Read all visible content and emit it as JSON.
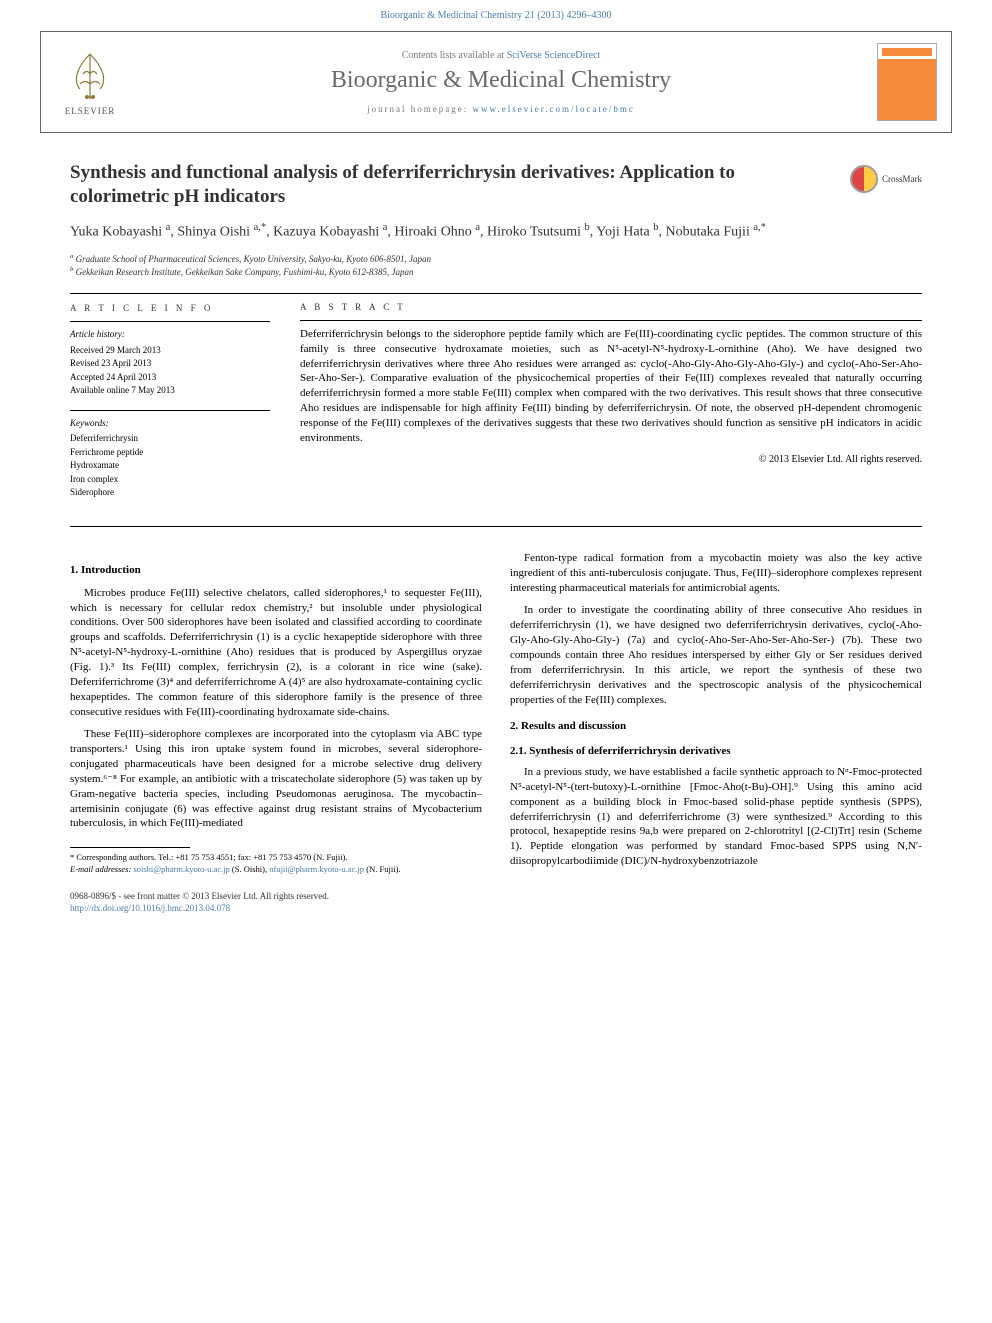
{
  "running_header": "Bioorganic & Medicinal Chemistry 21 (2013) 4296–4300",
  "header": {
    "contents_prefix": "Contents lists available at ",
    "contents_link": "SciVerse ScienceDirect",
    "journal": "Bioorganic & Medicinal Chemistry",
    "homepage_prefix": "journal homepage: ",
    "homepage_url": "www.elsevier.com/locate/bmc",
    "publisher": "ELSEVIER"
  },
  "crossmark": "CrossMark",
  "title": "Synthesis and functional analysis of deferriferrichrysin derivatives: Application to colorimetric pH indicators",
  "authors_html": "Yuka Kobayashi <sup>a</sup>, Shinya Oishi <sup>a,*</sup>, Kazuya Kobayashi <sup>a</sup>, Hiroaki Ohno <sup>a</sup>, Hiroko Tsutsumi <sup>b</sup>, Yoji Hata <sup>b</sup>, Nobutaka Fujii <sup>a,*</sup>",
  "affiliations": {
    "a": "Graduate School of Pharmaceutical Sciences, Kyoto University, Sakyo-ku, Kyoto 606-8501, Japan",
    "b": "Gekkeikan Research Institute, Gekkeikan Sake Company, Fushimi-ku, Kyoto 612-8385, Japan"
  },
  "info": {
    "heading": "A R T I C L E   I N F O",
    "history_label": "Article history:",
    "history": [
      "Received 29 March 2013",
      "Revised 23 April 2013",
      "Accepted 24 April 2013",
      "Available online 7 May 2013"
    ],
    "keywords_label": "Keywords:",
    "keywords": [
      "Deferriferrichrysin",
      "Ferrichrome peptide",
      "Hydroxamate",
      "Iron complex",
      "Siderophore"
    ]
  },
  "abstract": {
    "heading": "A B S T R A C T",
    "text": "Deferriferrichrysin belongs to the siderophore peptide family which are Fe(III)-coordinating cyclic peptides. The common structure of this family is three consecutive hydroxamate moieties, such as N⁵-acetyl-N⁵-hydroxy-L-ornithine (Aho). We have designed two deferriferrichrysin derivatives where three Aho residues were arranged as: cyclo(-Aho-Gly-Aho-Gly-Aho-Gly-) and cyclo(-Aho-Ser-Aho-Ser-Aho-Ser-). Comparative evaluation of the physicochemical properties of their Fe(III) complexes revealed that naturally occurring deferriferrichrysin formed a more stable Fe(III) complex when compared with the two derivatives. This result shows that three consecutive Aho residues are indispensable for high affinity Fe(III) binding by deferriferrichrysin. Of note, the observed pH-dependent chromogenic response of the Fe(III) complexes of the derivatives suggests that these two derivatives should function as sensitive pH indicators in acidic environments.",
    "copyright": "© 2013 Elsevier Ltd. All rights reserved."
  },
  "sections": {
    "s1_heading": "1. Introduction",
    "s1_p1": "Microbes produce Fe(III) selective chelators, called siderophores,¹ to sequester Fe(III), which is necessary for cellular redox chemistry,² but insoluble under physiological conditions. Over 500 siderophores have been isolated and classified according to coordinate groups and scaffolds. Deferriferrichrysin (1) is a cyclic hexapeptide siderophore with three N⁵-acetyl-N⁵-hydroxy-L-ornithine (Aho) residues that is produced by Aspergillus oryzae (Fig. 1).³ Its Fe(III) complex, ferrichrysin (2), is a colorant in rice wine (sake). Deferriferrichrome (3)⁴ and deferriferrichrome A (4)⁵ are also hydroxamate-containing cyclic hexapeptides. The common feature of this siderophore family is the presence of three consecutive residues with Fe(III)-coordinating hydroxamate side-chains.",
    "s1_p2": "These Fe(III)–siderophore complexes are incorporated into the cytoplasm via ABC type transporters.¹ Using this iron uptake system found in microbes, several siderophore-conjugated pharmaceuticals have been designed for a microbe selective drug delivery system.⁶⁻⁸ For example, an antibiotic with a triscatecholate siderophore (5) was taken up by Gram-negative bacteria species, including Pseudomonas aeruginosa. The mycobactin–artemisinin conjugate (6) was effective against drug resistant strains of Mycobacterium tuberculosis, in which Fe(III)-mediated",
    "s1_p3": "Fenton-type radical formation from a mycobactin moiety was also the key active ingredient of this anti-tuberculosis conjugate. Thus, Fe(III)–siderophore complexes represent interesting pharmaceutical materials for antimicrobial agents.",
    "s1_p4": "In order to investigate the coordinating ability of three consecutive Aho residues in deferriferrichrysin (1), we have designed two deferriferrichrysin derivatives, cyclo(-Aho-Gly-Aho-Gly-Aho-Gly-) (7a) and cyclo(-Aho-Ser-Aho-Ser-Aho-Ser-) (7b). These two compounds contain three Aho residues interspersed by either Gly or Ser residues derived from deferriferrichrysin. In this article, we report the synthesis of these two deferriferrichrysin derivatives and the spectroscopic analysis of the physicochemical properties of the Fe(III) complexes.",
    "s2_heading": "2. Results and discussion",
    "s2_1_heading": "2.1. Synthesis of deferriferrichrysin derivatives",
    "s2_1_p1": "In a previous study, we have established a facile synthetic approach to Nᵅ-Fmoc-protected N⁵-acetyl-N⁵-(tert-butoxy)-L-ornithine [Fmoc-Aho(t-Bu)-OH].⁹ Using this amino acid component as a building block in Fmoc-based solid-phase peptide synthesis (SPPS), deferriferrichrysin (1) and deferriferrichrome (3) were synthesized.⁹ According to this protocol, hexapeptide resins 9a,b were prepared on 2-chlorotrityl [(2-Cl)Trt] resin (Scheme 1). Peptide elongation was performed by standard Fmoc-based SPPS using N,N′-diisopropylcarbodiimide (DIC)/N-hydroxybenzotriazole"
  },
  "footnote": {
    "corr": "* Corresponding authors. Tel.: +81 75 753 4551; fax: +81 75 753 4570 (N. Fujii).",
    "email_label": "E-mail addresses:",
    "email1": "soishi@pharm.kyoto-u.ac.jp",
    "email1_name": " (S. Oishi), ",
    "email2": "nfujii@pharm.kyoto-u.ac.jp",
    "email2_name": " (N. Fujii)."
  },
  "footer": {
    "line1": "0968-0896/$ - see front matter © 2013 Elsevier Ltd. All rights reserved.",
    "doi": "http://dx.doi.org/10.1016/j.bmc.2013.04.078"
  },
  "colors": {
    "link": "#4a7ca8",
    "text": "#333333",
    "rule": "#000000",
    "cover_orange": "#f58a3c"
  }
}
